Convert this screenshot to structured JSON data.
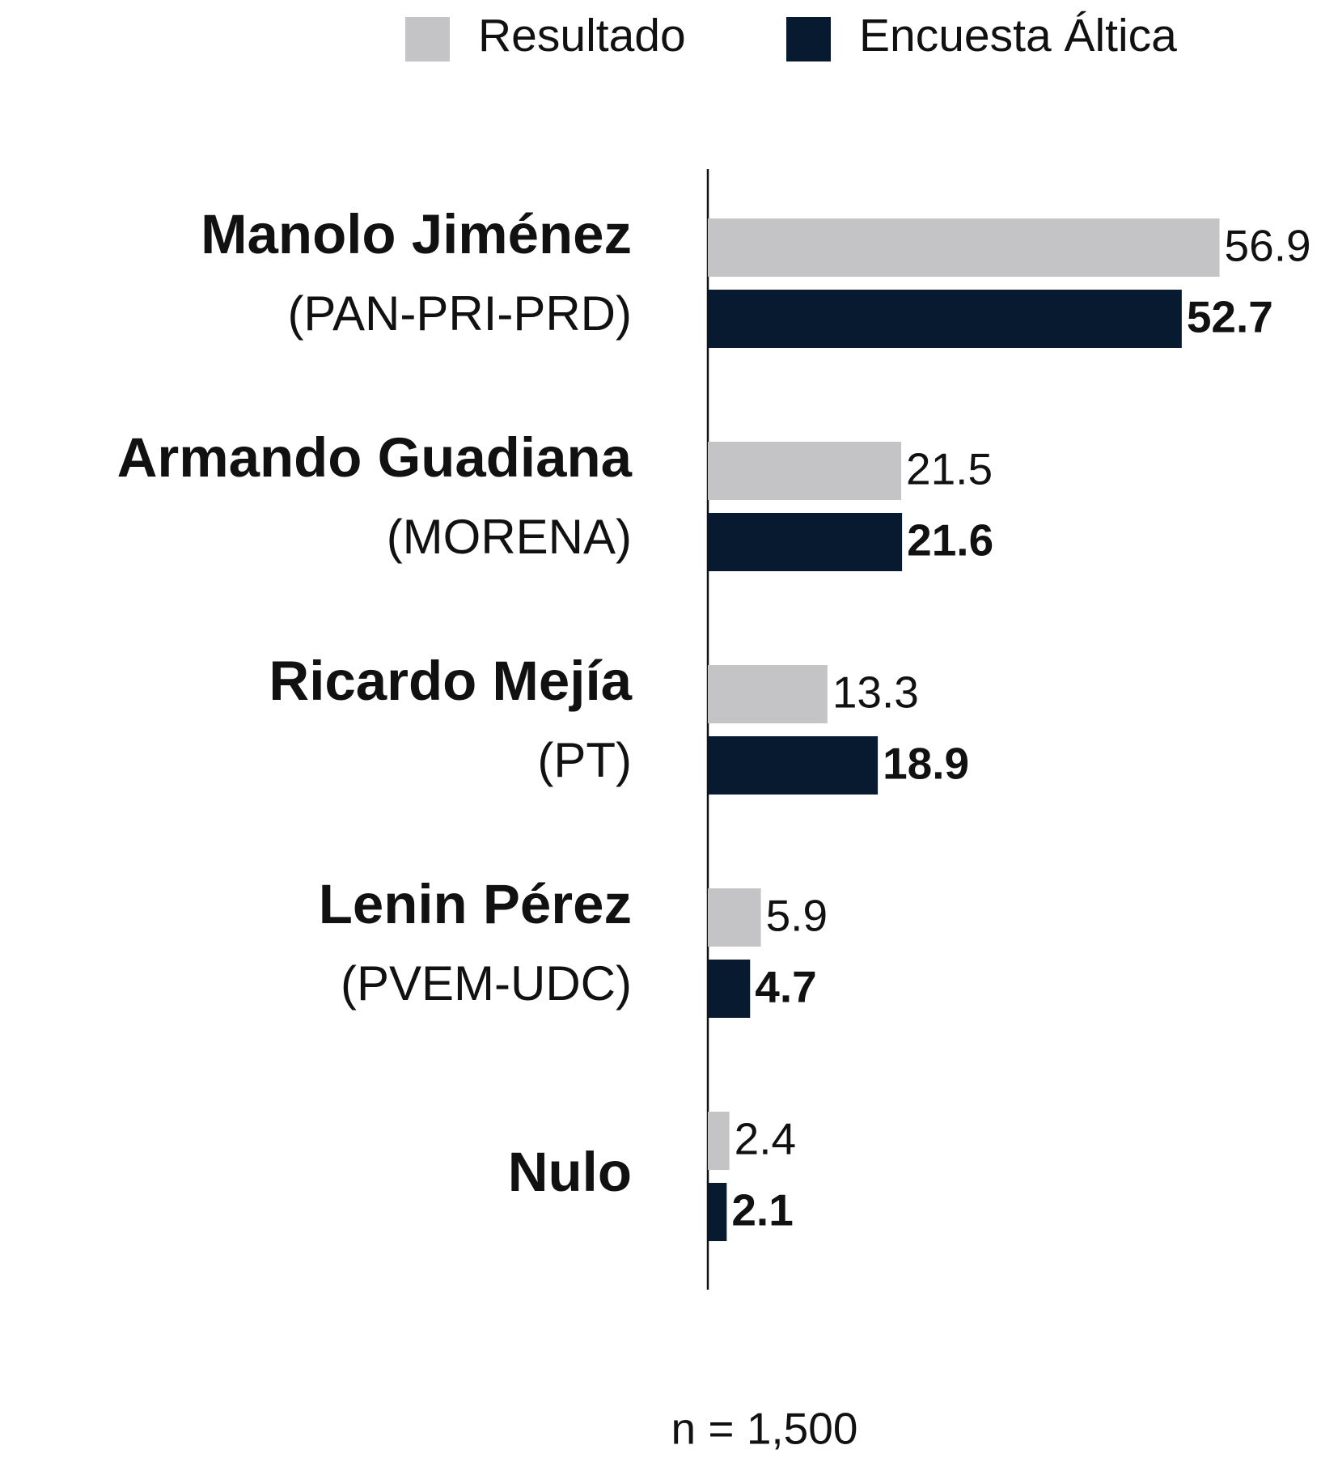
{
  "chart_data": {
    "type": "bar",
    "orientation": "horizontal",
    "categories": [
      "Manolo Jiménez",
      "Armando Guadiana",
      "Ricardo Mejía",
      "Lenin Pérez",
      "Nulo"
    ],
    "subtitles": [
      "(PAN-PRI-PRD)",
      "(MORENA)",
      "(PT)",
      "(PVEM-UDC)",
      null
    ],
    "series": [
      {
        "name": "Resultado",
        "color": "#c4c4c6",
        "label_color": "#8a95a5",
        "values": [
          56.9,
          21.5,
          13.3,
          5.9,
          2.4
        ]
      },
      {
        "name": "Encuesta Áltica",
        "color": "#071a30",
        "label_color": "#071a30",
        "values": [
          52.7,
          21.6,
          18.9,
          4.7,
          2.1
        ]
      }
    ],
    "xlim": [
      0,
      60
    ],
    "legend": "top",
    "note": "n = 1,500"
  }
}
